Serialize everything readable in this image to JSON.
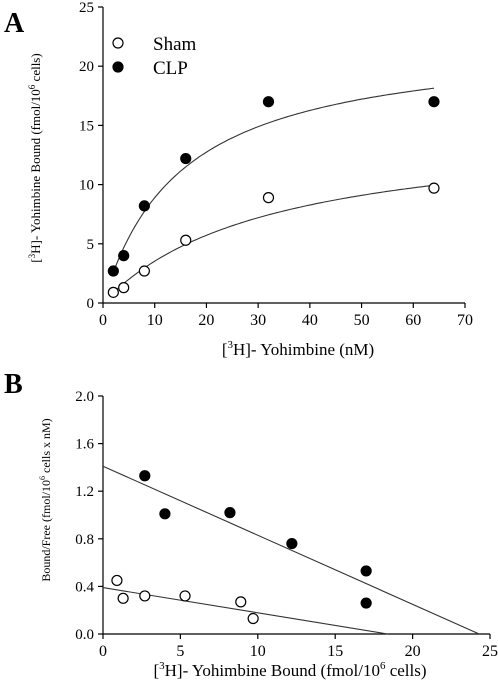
{
  "chart_data": [
    {
      "type": "scatter",
      "panel_label": "A",
      "xlabel_pre": "[",
      "xlabel_sup": "3",
      "xlabel_post": "H]- Yohimbine (nM)",
      "ylabel_pre": "[",
      "ylabel_sup": "3",
      "ylabel_mid": "H]- Yohimbine Bound (fmol/10",
      "ylabel_sup2": "6",
      "ylabel_post": " cells)",
      "xlim": [
        0,
        70
      ],
      "ylim": [
        0,
        25
      ],
      "xticks": [
        "0",
        "10",
        "20",
        "30",
        "40",
        "50",
        "60",
        "70"
      ],
      "yticks": [
        "0",
        "5",
        "10",
        "15",
        "20",
        "25"
      ],
      "legend": [
        {
          "name": "Sham",
          "marker": "open-circle"
        },
        {
          "name": "CLP",
          "marker": "filled-circle"
        }
      ],
      "legend_position": "top-left",
      "series": [
        {
          "name": "Sham",
          "marker": "open",
          "x": [
            2,
            4,
            8,
            16,
            32,
            64
          ],
          "y": [
            0.9,
            1.3,
            2.7,
            5.3,
            8.9,
            9.7
          ],
          "fit": {
            "bmax": 14.98,
            "kd": 32.4
          }
        },
        {
          "name": "CLP",
          "marker": "filled",
          "x": [
            2,
            4,
            8,
            16,
            32,
            64
          ],
          "y": [
            2.7,
            4.0,
            8.2,
            12.2,
            17.0,
            17.0
          ],
          "fit": {
            "bmax": 22.47,
            "kd": 15.27
          }
        }
      ]
    },
    {
      "type": "scatter",
      "panel_label": "B",
      "xlabel_pre": "[",
      "xlabel_sup": "3",
      "xlabel_mid": "H]- Yohimbine Bound (fmol/10",
      "xlabel_sup2": "6",
      "xlabel_post": " cells)",
      "ylabel_pre": "Bound/Free (fmol/10",
      "ylabel_sup": "6",
      "ylabel_post": " cells x nM)",
      "xlim": [
        0,
        25
      ],
      "ylim": [
        0,
        2.0
      ],
      "xticks": [
        "0",
        "5",
        "10",
        "15",
        "20",
        "25"
      ],
      "yticks": [
        "0.0",
        "0.4",
        "0.8",
        "1.2",
        "1.6",
        "2.0"
      ],
      "series": [
        {
          "name": "Sham",
          "marker": "open",
          "x": [
            0.9,
            1.3,
            2.7,
            5.3,
            8.9,
            9.7
          ],
          "y": [
            0.45,
            0.3,
            0.32,
            0.32,
            0.27,
            0.13
          ],
          "fit_line": {
            "x": [
              0,
              18.4
            ],
            "y": [
              0.39,
              0
            ]
          }
        },
        {
          "name": "CLP",
          "marker": "filled",
          "x": [
            2.7,
            4.0,
            8.2,
            12.2,
            17.0,
            17.0
          ],
          "y": [
            1.33,
            1.01,
            1.02,
            0.76,
            0.53,
            0.26
          ],
          "fit_line": {
            "x": [
              0,
              24.3
            ],
            "y": [
              1.41,
              0
            ]
          }
        }
      ]
    }
  ]
}
